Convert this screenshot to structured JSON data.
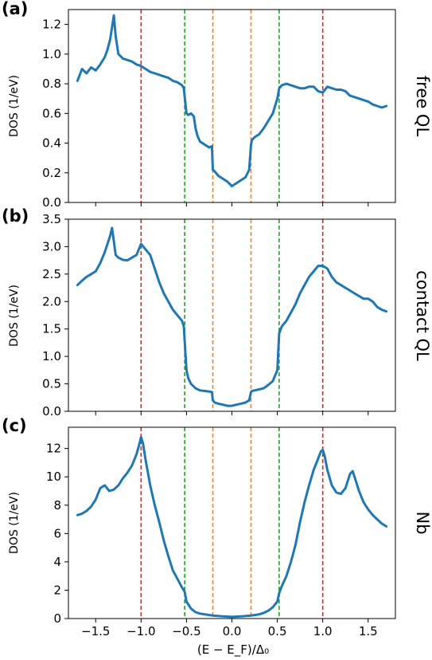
{
  "chart_data": [
    {
      "type": "line",
      "panel_label": "(a)",
      "side_title": "free QL",
      "ylabel": "DOS (1/eV)",
      "xlabel": "",
      "xlim": [
        -1.8,
        1.8
      ],
      "ylim": [
        0.0,
        1.3
      ],
      "xticks": [
        -1.5,
        -1.0,
        -0.5,
        0.0,
        0.5,
        1.0,
        1.5
      ],
      "xtick_labels": [],
      "yticks": [
        0.0,
        0.2,
        0.4,
        0.6,
        0.8,
        1.0,
        1.2
      ],
      "ytick_labels": [
        "0.0",
        "0.2",
        "0.4",
        "0.6",
        "0.8",
        "1.0",
        "1.2"
      ],
      "vlines": [
        {
          "x": -1.0,
          "color": "#d62728"
        },
        {
          "x": 1.0,
          "color": "#d62728"
        },
        {
          "x": -0.52,
          "color": "#2ca02c"
        },
        {
          "x": 0.52,
          "color": "#2ca02c"
        },
        {
          "x": -0.21,
          "color": "#ff7f0e"
        },
        {
          "x": 0.21,
          "color": "#ff7f0e"
        }
      ],
      "series": [
        {
          "color": "#1f77b4",
          "x": [
            -1.7,
            -1.65,
            -1.6,
            -1.55,
            -1.5,
            -1.45,
            -1.4,
            -1.37,
            -1.34,
            -1.32,
            -1.3,
            -1.28,
            -1.25,
            -1.2,
            -1.15,
            -1.1,
            -1.05,
            -1.0,
            -0.95,
            -0.9,
            -0.85,
            -0.8,
            -0.75,
            -0.7,
            -0.65,
            -0.6,
            -0.55,
            -0.53,
            -0.5,
            -0.48,
            -0.45,
            -0.42,
            -0.4,
            -0.38,
            -0.35,
            -0.3,
            -0.25,
            -0.22,
            -0.21,
            -0.19,
            -0.15,
            -0.1,
            -0.05,
            0.0,
            0.05,
            0.1,
            0.15,
            0.19,
            0.21,
            0.22,
            0.25,
            0.3,
            0.35,
            0.4,
            0.45,
            0.5,
            0.52,
            0.55,
            0.6,
            0.65,
            0.7,
            0.75,
            0.8,
            0.85,
            0.9,
            0.95,
            1.0,
            1.05,
            1.1,
            1.15,
            1.2,
            1.25,
            1.3,
            1.35,
            1.4,
            1.45,
            1.5,
            1.55,
            1.6,
            1.65,
            1.7
          ],
          "y": [
            0.82,
            0.9,
            0.87,
            0.91,
            0.89,
            0.93,
            0.98,
            1.03,
            1.1,
            1.18,
            1.26,
            1.12,
            1.0,
            0.97,
            0.96,
            0.95,
            0.93,
            0.92,
            0.9,
            0.88,
            0.87,
            0.86,
            0.85,
            0.84,
            0.82,
            0.81,
            0.79,
            0.77,
            0.6,
            0.59,
            0.6,
            0.58,
            0.5,
            0.45,
            0.41,
            0.39,
            0.37,
            0.38,
            0.22,
            0.21,
            0.18,
            0.16,
            0.14,
            0.11,
            0.13,
            0.15,
            0.17,
            0.22,
            0.39,
            0.42,
            0.44,
            0.46,
            0.5,
            0.55,
            0.6,
            0.7,
            0.77,
            0.79,
            0.8,
            0.79,
            0.78,
            0.77,
            0.77,
            0.78,
            0.78,
            0.75,
            0.74,
            0.78,
            0.77,
            0.76,
            0.76,
            0.75,
            0.72,
            0.71,
            0.7,
            0.69,
            0.68,
            0.66,
            0.65,
            0.64,
            0.65
          ]
        }
      ]
    },
    {
      "type": "line",
      "panel_label": "(b)",
      "side_title": "contact QL",
      "ylabel": "DOS (1/eV)",
      "xlabel": "",
      "xlim": [
        -1.8,
        1.8
      ],
      "ylim": [
        0.0,
        3.5
      ],
      "xticks": [
        -1.5,
        -1.0,
        -0.5,
        0.0,
        0.5,
        1.0,
        1.5
      ],
      "xtick_labels": [],
      "yticks": [
        0.0,
        0.5,
        1.0,
        1.5,
        2.0,
        2.5,
        3.0,
        3.5
      ],
      "ytick_labels": [
        "0.0",
        "0.5",
        "1.0",
        "1.5",
        "2.0",
        "2.5",
        "3.0",
        "3.5"
      ],
      "vlines": [
        {
          "x": -1.0,
          "color": "#d62728"
        },
        {
          "x": 1.0,
          "color": "#d62728"
        },
        {
          "x": -0.52,
          "color": "#2ca02c"
        },
        {
          "x": 0.52,
          "color": "#2ca02c"
        },
        {
          "x": -0.21,
          "color": "#ff7f0e"
        },
        {
          "x": 0.21,
          "color": "#ff7f0e"
        }
      ],
      "series": [
        {
          "color": "#1f77b4",
          "x": [
            -1.7,
            -1.65,
            -1.6,
            -1.55,
            -1.5,
            -1.45,
            -1.4,
            -1.37,
            -1.34,
            -1.32,
            -1.3,
            -1.28,
            -1.25,
            -1.2,
            -1.15,
            -1.1,
            -1.05,
            -1.0,
            -0.95,
            -0.9,
            -0.85,
            -0.8,
            -0.75,
            -0.7,
            -0.65,
            -0.6,
            -0.55,
            -0.53,
            -0.5,
            -0.48,
            -0.45,
            -0.4,
            -0.35,
            -0.3,
            -0.25,
            -0.22,
            -0.21,
            -0.19,
            -0.15,
            -0.1,
            -0.05,
            0.0,
            0.05,
            0.1,
            0.15,
            0.19,
            0.21,
            0.22,
            0.25,
            0.3,
            0.35,
            0.4,
            0.45,
            0.5,
            0.52,
            0.55,
            0.6,
            0.65,
            0.7,
            0.75,
            0.8,
            0.85,
            0.9,
            0.95,
            1.0,
            1.05,
            1.1,
            1.15,
            1.2,
            1.25,
            1.3,
            1.35,
            1.4,
            1.45,
            1.5,
            1.55,
            1.6,
            1.65,
            1.7
          ],
          "y": [
            2.3,
            2.38,
            2.45,
            2.5,
            2.55,
            2.7,
            2.9,
            3.05,
            3.2,
            3.34,
            3.1,
            2.85,
            2.8,
            2.76,
            2.75,
            2.8,
            2.85,
            3.05,
            2.95,
            2.85,
            2.6,
            2.35,
            2.15,
            2.0,
            1.85,
            1.75,
            1.65,
            1.55,
            0.75,
            0.6,
            0.5,
            0.42,
            0.38,
            0.37,
            0.36,
            0.35,
            0.2,
            0.16,
            0.14,
            0.12,
            0.1,
            0.1,
            0.12,
            0.14,
            0.16,
            0.2,
            0.35,
            0.37,
            0.38,
            0.4,
            0.42,
            0.48,
            0.55,
            0.75,
            1.42,
            1.55,
            1.65,
            1.8,
            1.95,
            2.15,
            2.3,
            2.45,
            2.55,
            2.65,
            2.65,
            2.6,
            2.45,
            2.35,
            2.3,
            2.25,
            2.2,
            2.15,
            2.1,
            2.05,
            2.05,
            2.0,
            1.9,
            1.85,
            1.82
          ]
        }
      ]
    },
    {
      "type": "line",
      "panel_label": "(c)",
      "side_title": "Nb",
      "ylabel": "DOS (1/eV)",
      "xlabel": "(E − E_F)/Δ₀",
      "xlim": [
        -1.8,
        1.8
      ],
      "ylim": [
        0,
        13.5
      ],
      "xticks": [
        -1.5,
        -1.0,
        -0.5,
        0.0,
        0.5,
        1.0,
        1.5
      ],
      "xtick_labels": [
        "−1.5",
        "−1.0",
        "−0.5",
        "0.0",
        "0.5",
        "1.0",
        "1.5"
      ],
      "yticks": [
        0,
        2,
        4,
        6,
        8,
        10,
        12
      ],
      "ytick_labels": [
        "0",
        "2",
        "4",
        "6",
        "8",
        "10",
        "12"
      ],
      "vlines": [
        {
          "x": -1.0,
          "color": "#d62728"
        },
        {
          "x": 1.0,
          "color": "#d62728"
        },
        {
          "x": -0.52,
          "color": "#2ca02c"
        },
        {
          "x": 0.52,
          "color": "#2ca02c"
        },
        {
          "x": -0.21,
          "color": "#ff7f0e"
        },
        {
          "x": 0.21,
          "color": "#ff7f0e"
        }
      ],
      "series": [
        {
          "color": "#1f77b4",
          "x": [
            -1.7,
            -1.65,
            -1.6,
            -1.55,
            -1.5,
            -1.45,
            -1.4,
            -1.35,
            -1.3,
            -1.25,
            -1.2,
            -1.15,
            -1.1,
            -1.05,
            -1.02,
            -1.0,
            -0.98,
            -0.95,
            -0.9,
            -0.85,
            -0.8,
            -0.75,
            -0.7,
            -0.65,
            -0.6,
            -0.55,
            -0.52,
            -0.5,
            -0.45,
            -0.4,
            -0.35,
            -0.3,
            -0.25,
            -0.2,
            -0.1,
            0.0,
            0.1,
            0.2,
            0.25,
            0.3,
            0.35,
            0.4,
            0.45,
            0.5,
            0.52,
            0.55,
            0.6,
            0.65,
            0.7,
            0.75,
            0.8,
            0.85,
            0.9,
            0.95,
            0.98,
            1.0,
            1.02,
            1.05,
            1.1,
            1.15,
            1.2,
            1.25,
            1.3,
            1.33,
            1.35,
            1.4,
            1.45,
            1.5,
            1.55,
            1.6,
            1.65,
            1.7
          ],
          "y": [
            7.3,
            7.4,
            7.6,
            7.9,
            8.4,
            9.2,
            9.4,
            9.0,
            9.1,
            9.4,
            9.9,
            10.3,
            10.8,
            11.6,
            12.3,
            12.8,
            12.4,
            11.2,
            9.4,
            8.0,
            6.8,
            5.5,
            4.4,
            3.4,
            2.8,
            2.2,
            1.9,
            1.2,
            0.7,
            0.45,
            0.35,
            0.3,
            0.25,
            0.2,
            0.15,
            0.12,
            0.15,
            0.2,
            0.25,
            0.3,
            0.4,
            0.55,
            0.8,
            1.2,
            1.8,
            2.3,
            3.0,
            4.0,
            5.2,
            6.8,
            8.2,
            9.4,
            10.5,
            11.3,
            11.8,
            11.9,
            11.5,
            10.5,
            9.4,
            8.9,
            8.8,
            9.2,
            10.2,
            10.4,
            10.0,
            9.0,
            8.2,
            7.7,
            7.3,
            7.0,
            6.7,
            6.5
          ]
        }
      ]
    }
  ]
}
